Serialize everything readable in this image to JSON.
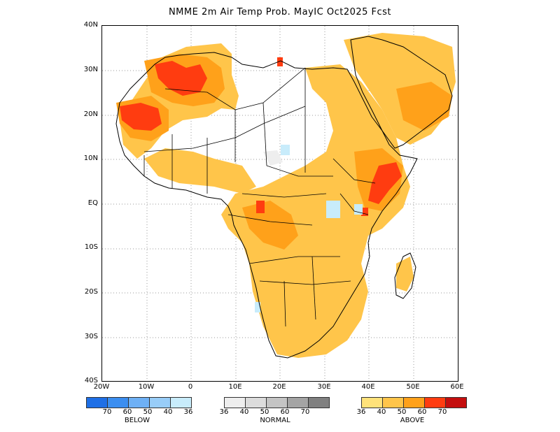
{
  "title": "NMME 2m Air Temp Prob. MayIC  Oct2025 Fcst",
  "axes": {
    "y_labels": [
      "40N",
      "30N",
      "20N",
      "10N",
      "EQ",
      "10S",
      "20S",
      "30S",
      "40S"
    ],
    "x_labels": [
      "20W",
      "10W",
      "0",
      "10E",
      "20E",
      "30E",
      "40E",
      "50E",
      "60E"
    ]
  },
  "legend": {
    "below": {
      "name": "BELOW",
      "colors": [
        "#1e6fe6",
        "#3b8ef0",
        "#6eb0f5",
        "#98cdf8",
        "#c8ecfb"
      ],
      "ticks": [
        "70",
        "60",
        "50",
        "40",
        "36"
      ]
    },
    "normal": {
      "name": "NORMAL",
      "colors": [
        "#eeeeee",
        "#dcdcdc",
        "#c4c4c4",
        "#a4a4a4",
        "#808080"
      ],
      "ticks": [
        "36",
        "40",
        "50",
        "60",
        "70"
      ]
    },
    "above": {
      "name": "ABOVE",
      "colors": [
        "#ffe27a",
        "#ffc54a",
        "#ffa11a",
        "#ff3c10",
        "#c40e0e"
      ],
      "ticks": [
        "36",
        "40",
        "50",
        "60",
        "70"
      ]
    }
  }
}
